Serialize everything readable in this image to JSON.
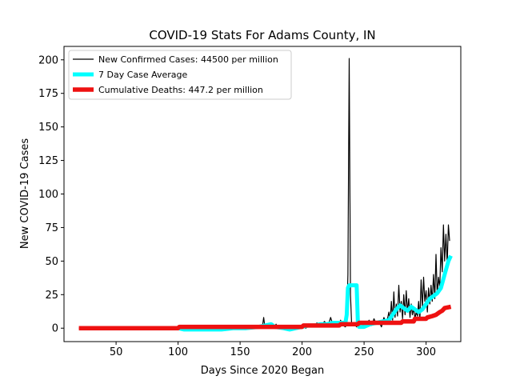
{
  "chart_data": {
    "type": "line",
    "title": "COVID-19 Stats For Adams County, IN",
    "xlabel": "Days Since 2020 Began",
    "ylabel": "New COVID-19 Cases",
    "xlim": [
      8,
      328
    ],
    "ylim": [
      -10,
      210
    ],
    "xticks": [
      50,
      100,
      150,
      200,
      250,
      300
    ],
    "yticks": [
      0,
      25,
      50,
      75,
      100,
      125,
      150,
      175,
      200
    ],
    "grid": false,
    "legend_position": "top-left",
    "series": [
      {
        "name": "New Confirmed Cases: 44500 per million",
        "color": "#000000",
        "style": "thin",
        "points": [
          [
            20,
            0
          ],
          [
            60,
            0
          ],
          [
            100,
            0
          ],
          [
            101,
            1
          ],
          [
            110,
            1
          ],
          [
            120,
            0
          ],
          [
            130,
            1
          ],
          [
            140,
            0
          ],
          [
            150,
            1
          ],
          [
            160,
            0
          ],
          [
            168,
            1
          ],
          [
            169,
            8
          ],
          [
            170,
            1
          ],
          [
            178,
            0
          ],
          [
            179,
            3
          ],
          [
            180,
            0
          ],
          [
            190,
            1
          ],
          [
            195,
            0
          ],
          [
            200,
            2
          ],
          [
            203,
            0
          ],
          [
            206,
            3
          ],
          [
            209,
            1
          ],
          [
            212,
            4
          ],
          [
            215,
            1
          ],
          [
            218,
            5
          ],
          [
            221,
            2
          ],
          [
            223,
            8
          ],
          [
            225,
            2
          ],
          [
            227,
            3
          ],
          [
            229,
            1
          ],
          [
            231,
            6
          ],
          [
            233,
            2
          ],
          [
            235,
            1
          ],
          [
            236,
            4
          ],
          [
            237,
            40
          ],
          [
            238,
            201
          ],
          [
            239,
            25
          ],
          [
            240,
            2
          ],
          [
            242,
            3
          ],
          [
            244,
            1
          ],
          [
            246,
            3
          ],
          [
            248,
            0
          ],
          [
            250,
            4
          ],
          [
            252,
            2
          ],
          [
            254,
            6
          ],
          [
            256,
            2
          ],
          [
            258,
            7
          ],
          [
            260,
            3
          ],
          [
            262,
            5
          ],
          [
            264,
            1
          ],
          [
            266,
            8
          ],
          [
            268,
            3
          ],
          [
            270,
            12
          ],
          [
            271,
            5
          ],
          [
            272,
            20
          ],
          [
            273,
            6
          ],
          [
            274,
            27
          ],
          [
            275,
            8
          ],
          [
            276,
            18
          ],
          [
            277,
            9
          ],
          [
            278,
            32
          ],
          [
            279,
            12
          ],
          [
            280,
            20
          ],
          [
            281,
            7
          ],
          [
            282,
            25
          ],
          [
            283,
            10
          ],
          [
            284,
            28
          ],
          [
            285,
            12
          ],
          [
            286,
            22
          ],
          [
            287,
            8
          ],
          [
            288,
            18
          ],
          [
            289,
            10
          ],
          [
            290,
            15
          ],
          [
            291,
            7
          ],
          [
            292,
            12
          ],
          [
            293,
            9
          ],
          [
            294,
            20
          ],
          [
            295,
            6
          ],
          [
            296,
            36
          ],
          [
            297,
            15
          ],
          [
            298,
            38
          ],
          [
            299,
            20
          ],
          [
            300,
            28
          ],
          [
            301,
            12
          ],
          [
            302,
            30
          ],
          [
            303,
            18
          ],
          [
            304,
            32
          ],
          [
            305,
            20
          ],
          [
            306,
            40
          ],
          [
            307,
            22
          ],
          [
            308,
            55
          ],
          [
            309,
            25
          ],
          [
            310,
            38
          ],
          [
            311,
            30
          ],
          [
            312,
            60
          ],
          [
            313,
            42
          ],
          [
            314,
            77
          ],
          [
            315,
            50
          ],
          [
            316,
            70
          ],
          [
            317,
            48
          ],
          [
            318,
            77
          ],
          [
            319,
            65
          ]
        ]
      },
      {
        "name": "7 Day Case Average",
        "color": "#00ffff",
        "style": "medium",
        "points": [
          [
            100,
            0
          ],
          [
            105,
            -1
          ],
          [
            115,
            -1
          ],
          [
            125,
            -1
          ],
          [
            135,
            -1
          ],
          [
            145,
            0
          ],
          [
            155,
            0
          ],
          [
            165,
            1
          ],
          [
            170,
            2
          ],
          [
            175,
            3
          ],
          [
            178,
            1
          ],
          [
            185,
            0
          ],
          [
            190,
            -1
          ],
          [
            195,
            0
          ],
          [
            200,
            1
          ],
          [
            205,
            2
          ],
          [
            210,
            2
          ],
          [
            215,
            3
          ],
          [
            220,
            3
          ],
          [
            225,
            4
          ],
          [
            230,
            4
          ],
          [
            235,
            4
          ],
          [
            236,
            10
          ],
          [
            237,
            30
          ],
          [
            238,
            32
          ],
          [
            242,
            32
          ],
          [
            244,
            32
          ],
          [
            245,
            5
          ],
          [
            246,
            1
          ],
          [
            250,
            1
          ],
          [
            255,
            3
          ],
          [
            260,
            4
          ],
          [
            265,
            5
          ],
          [
            270,
            6
          ],
          [
            273,
            10
          ],
          [
            276,
            14
          ],
          [
            279,
            17
          ],
          [
            282,
            15
          ],
          [
            285,
            13
          ],
          [
            288,
            16
          ],
          [
            291,
            14
          ],
          [
            294,
            12
          ],
          [
            297,
            14
          ],
          [
            300,
            18
          ],
          [
            303,
            22
          ],
          [
            306,
            24
          ],
          [
            309,
            26
          ],
          [
            312,
            30
          ],
          [
            315,
            40
          ],
          [
            318,
            50
          ],
          [
            320,
            54
          ]
        ]
      },
      {
        "name": "Cumulative Deaths: 447.2 per million",
        "color": "#ee1111",
        "style": "thick",
        "points": [
          [
            20,
            0
          ],
          [
            100,
            0
          ],
          [
            101,
            1
          ],
          [
            200,
            1
          ],
          [
            201,
            2
          ],
          [
            230,
            2
          ],
          [
            231,
            3
          ],
          [
            245,
            3
          ],
          [
            246,
            4
          ],
          [
            280,
            4
          ],
          [
            281,
            5
          ],
          [
            290,
            5
          ],
          [
            291,
            7
          ],
          [
            300,
            7
          ],
          [
            301,
            8
          ],
          [
            305,
            9
          ],
          [
            308,
            10
          ],
          [
            311,
            12
          ],
          [
            313,
            13
          ],
          [
            315,
            15
          ],
          [
            320,
            16
          ]
        ]
      }
    ]
  }
}
